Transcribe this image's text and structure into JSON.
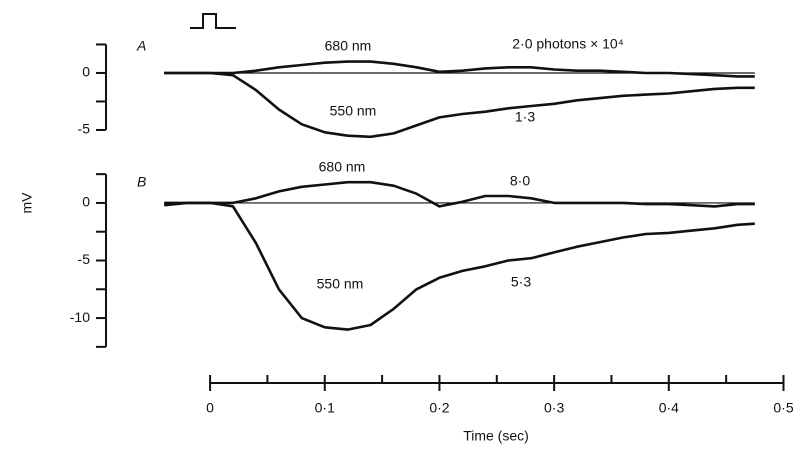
{
  "chart_data": [
    {
      "type": "line",
      "x": [
        -0.04,
        -0.02,
        0,
        0.02,
        0.04,
        0.06,
        0.08,
        0.1,
        0.12,
        0.14,
        0.16,
        0.18,
        0.2,
        0.22,
        0.24,
        0.26,
        0.28,
        0.3,
        0.32,
        0.34,
        0.36,
        0.38,
        0.4,
        0.42,
        0.44,
        0.46,
        0.475
      ],
      "series": [
        {
          "name": "680 nm",
          "color": "#111111",
          "values": [
            0,
            0,
            0,
            0,
            0.2,
            0.5,
            0.7,
            0.9,
            1.0,
            1.0,
            0.8,
            0.5,
            0.1,
            0.2,
            0.4,
            0.5,
            0.5,
            0.3,
            0.2,
            0.2,
            0.1,
            0,
            0,
            -0.1,
            -0.2,
            -0.3,
            -0.3
          ]
        },
        {
          "name": "550 nm",
          "color": "#111111",
          "values": [
            0,
            0,
            0,
            -0.2,
            -1.5,
            -3.2,
            -4.5,
            -5.2,
            -5.5,
            -5.6,
            -5.3,
            -4.6,
            -3.9,
            -3.6,
            -3.4,
            -3.1,
            -2.9,
            -2.7,
            -2.4,
            -2.2,
            -2.0,
            -1.9,
            -1.8,
            -1.6,
            -1.4,
            -1.3,
            -1.3
          ]
        }
      ],
      "xlim": [
        -0.055,
        0.5
      ],
      "ylim": [
        -5.3,
        2.4
      ],
      "yticks": [
        0,
        -5
      ],
      "minor_yticks": [
        2.5,
        -2.5
      ],
      "annotations": [
        "A",
        "680 nm",
        "2·0 photons × 10⁴",
        "550 nm",
        "1·3"
      ]
    },
    {
      "type": "line",
      "x": [
        -0.04,
        -0.02,
        0,
        0.02,
        0.04,
        0.06,
        0.08,
        0.1,
        0.12,
        0.14,
        0.16,
        0.18,
        0.2,
        0.22,
        0.24,
        0.26,
        0.28,
        0.3,
        0.32,
        0.34,
        0.36,
        0.38,
        0.4,
        0.42,
        0.44,
        0.46,
        0.475
      ],
      "series": [
        {
          "name": "680 nm",
          "color": "#111111",
          "values": [
            0,
            0,
            0,
            0,
            0.4,
            1.0,
            1.4,
            1.6,
            1.8,
            1.8,
            1.5,
            0.8,
            -0.3,
            0.1,
            0.6,
            0.6,
            0.4,
            0,
            0,
            0,
            0,
            -0.1,
            -0.1,
            -0.2,
            -0.3,
            -0.1,
            -0.1
          ]
        },
        {
          "name": "550 nm",
          "color": "#111111",
          "values": [
            -0.2,
            0,
            0,
            -0.3,
            -3.5,
            -7.5,
            -10,
            -10.8,
            -11,
            -10.6,
            -9.2,
            -7.5,
            -6.5,
            -5.9,
            -5.5,
            -5.0,
            -4.8,
            -4.3,
            -3.8,
            -3.4,
            -3.0,
            -2.7,
            -2.6,
            -2.4,
            -2.2,
            -1.9,
            -1.8
          ]
        }
      ],
      "xlim": [
        -0.055,
        0.5
      ],
      "ylim": [
        -12.6,
        2.6
      ],
      "yticks": [
        0,
        -5,
        -10
      ],
      "minor_yticks": [
        2.5,
        -2.5,
        -7.5,
        -12.5
      ],
      "xticks": [
        {
          "value": 0,
          "label": "0"
        },
        {
          "value": 0.1,
          "label": "0·1"
        },
        {
          "value": 0.2,
          "label": "0·2"
        },
        {
          "value": 0.3,
          "label": "0·3"
        },
        {
          "value": 0.4,
          "label": "0·4"
        },
        {
          "value": 0.5,
          "label": "0·5"
        }
      ],
      "minor_xticks": [
        0.05,
        0.15,
        0.25,
        0.35,
        0.45
      ],
      "xlabel": "Time (sec)",
      "ylabel": "mV",
      "annotations": [
        "B",
        "680 nm",
        "8·0",
        "550 nm",
        "5·3"
      ]
    }
  ]
}
